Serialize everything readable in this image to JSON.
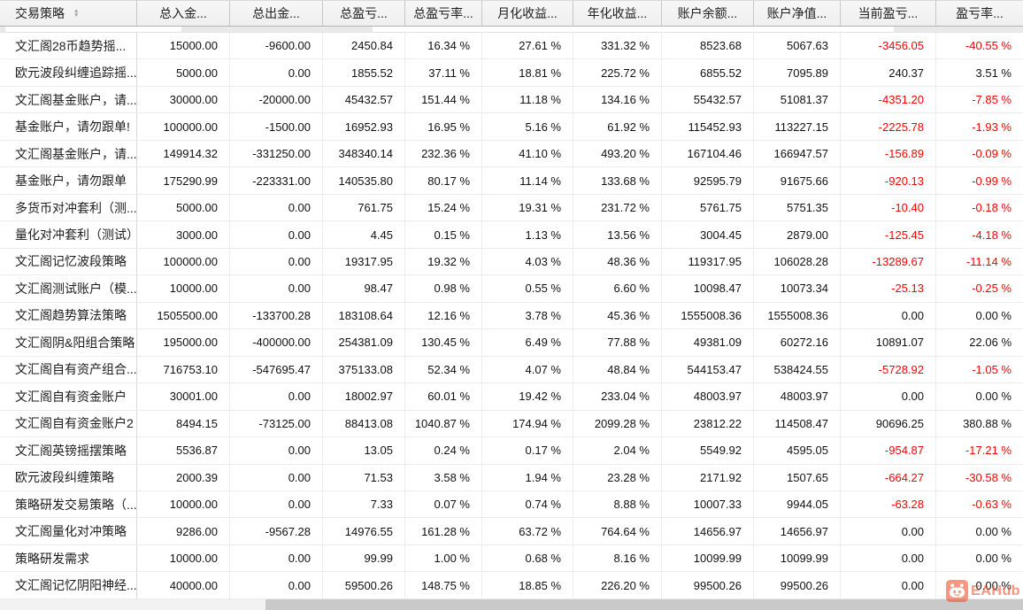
{
  "table": {
    "columns": [
      {
        "label": "交易策略",
        "sortable": true
      },
      {
        "label": "总入金..."
      },
      {
        "label": "总出金..."
      },
      {
        "label": "总盈亏..."
      },
      {
        "label": "总盈亏率..."
      },
      {
        "label": "月化收益..."
      },
      {
        "label": "年化收益..."
      },
      {
        "label": "账户余额..."
      },
      {
        "label": "账户净值..."
      },
      {
        "label": "当前盈亏..."
      },
      {
        "label": "盈亏率..."
      }
    ],
    "rows": [
      [
        "文汇阁28币趋势摇...",
        "15000.00",
        "-9600.00",
        "2450.84",
        "16.34 %",
        "27.61 %",
        "331.32 %",
        "8523.68",
        "5067.63",
        "-3456.05",
        "-40.55 %"
      ],
      [
        "欧元波段纠缠追踪摇...",
        "5000.00",
        "0.00",
        "1855.52",
        "37.11 %",
        "18.81 %",
        "225.72 %",
        "6855.52",
        "7095.89",
        "240.37",
        "3.51 %"
      ],
      [
        "文汇阁基金账户，请...",
        "30000.00",
        "-20000.00",
        "45432.57",
        "151.44 %",
        "11.18 %",
        "134.16 %",
        "55432.57",
        "51081.37",
        "-4351.20",
        "-7.85 %"
      ],
      [
        "基金账户，请勿跟单!",
        "100000.00",
        "-1500.00",
        "16952.93",
        "16.95 %",
        "5.16 %",
        "61.92 %",
        "115452.93",
        "113227.15",
        "-2225.78",
        "-1.93 %"
      ],
      [
        "文汇阁基金账户，请...",
        "149914.32",
        "-331250.00",
        "348340.14",
        "232.36 %",
        "41.10 %",
        "493.20 %",
        "167104.46",
        "166947.57",
        "-156.89",
        "-0.09 %"
      ],
      [
        "基金账户，请勿跟单",
        "175290.99",
        "-223331.00",
        "140535.80",
        "80.17 %",
        "11.14 %",
        "133.68 %",
        "92595.79",
        "91675.66",
        "-920.13",
        "-0.99 %"
      ],
      [
        "多货币对冲套利（测...",
        "5000.00",
        "0.00",
        "761.75",
        "15.24 %",
        "19.31 %",
        "231.72 %",
        "5761.75",
        "5751.35",
        "-10.40",
        "-0.18 %"
      ],
      [
        "量化对冲套利（测试）",
        "3000.00",
        "0.00",
        "4.45",
        "0.15 %",
        "1.13 %",
        "13.56 %",
        "3004.45",
        "2879.00",
        "-125.45",
        "-4.18 %"
      ],
      [
        "文汇阁记忆波段策略",
        "100000.00",
        "0.00",
        "19317.95",
        "19.32 %",
        "4.03 %",
        "48.36 %",
        "119317.95",
        "106028.28",
        "-13289.67",
        "-11.14 %"
      ],
      [
        "文汇阁测试账户（模...",
        "10000.00",
        "0.00",
        "98.47",
        "0.98 %",
        "0.55 %",
        "6.60 %",
        "10098.47",
        "10073.34",
        "-25.13",
        "-0.25 %"
      ],
      [
        "文汇阁趋势算法策略",
        "1505500.00",
        "-133700.28",
        "183108.64",
        "12.16 %",
        "3.78 %",
        "45.36 %",
        "1555008.36",
        "1555008.36",
        "0.00",
        "0.00 %"
      ],
      [
        "文汇阁阴&阳组合策略",
        "195000.00",
        "-400000.00",
        "254381.09",
        "130.45 %",
        "6.49 %",
        "77.88 %",
        "49381.09",
        "60272.16",
        "10891.07",
        "22.06 %"
      ],
      [
        "文汇阁自有资产组合...",
        "716753.10",
        "-547695.47",
        "375133.08",
        "52.34 %",
        "4.07 %",
        "48.84 %",
        "544153.47",
        "538424.55",
        "-5728.92",
        "-1.05 %"
      ],
      [
        "文汇阁自有资金账户",
        "30001.00",
        "0.00",
        "18002.97",
        "60.01 %",
        "19.42 %",
        "233.04 %",
        "48003.97",
        "48003.97",
        "0.00",
        "0.00 %"
      ],
      [
        "文汇阁自有资金账户2",
        "8494.15",
        "-73125.00",
        "88413.08",
        "1040.87 %",
        "174.94 %",
        "2099.28 %",
        "23812.22",
        "114508.47",
        "90696.25",
        "380.88 %"
      ],
      [
        "文汇阁英镑摇摆策略",
        "5536.87",
        "0.00",
        "13.05",
        "0.24 %",
        "0.17 %",
        "2.04 %",
        "5549.92",
        "4595.05",
        "-954.87",
        "-17.21 %"
      ],
      [
        "欧元波段纠缠策略",
        "2000.39",
        "0.00",
        "71.53",
        "3.58 %",
        "1.94 %",
        "23.28 %",
        "2171.92",
        "1507.65",
        "-664.27",
        "-30.58 %"
      ],
      [
        "策略研发交易策略（...",
        "10000.00",
        "0.00",
        "7.33",
        "0.07 %",
        "0.74 %",
        "8.88 %",
        "10007.33",
        "9944.05",
        "-63.28",
        "-0.63 %"
      ],
      [
        "文汇阁量化对冲策略",
        "9286.00",
        "-9567.28",
        "14976.55",
        "161.28 %",
        "63.72 %",
        "764.64 %",
        "14656.97",
        "14656.97",
        "0.00",
        "0.00 %"
      ],
      [
        "策略研发需求",
        "10000.00",
        "0.00",
        "99.99",
        "1.00 %",
        "0.68 %",
        "8.16 %",
        "10099.99",
        "10099.99",
        "0.00",
        "0.00 %"
      ],
      [
        "文汇阁记忆阴阳神经...",
        "40000.00",
        "0.00",
        "59500.26",
        "148.75 %",
        "18.85 %",
        "226.20 %",
        "99500.26",
        "99500.26",
        "0.00",
        "0.00 %"
      ]
    ]
  },
  "watermark": {
    "text": "EAHub"
  },
  "colors": {
    "negative_value": "#ff0000",
    "watermark_orange": "#f0552e",
    "header_background": "#efefef",
    "scrollbar_thumb": "#c9c9c9"
  }
}
